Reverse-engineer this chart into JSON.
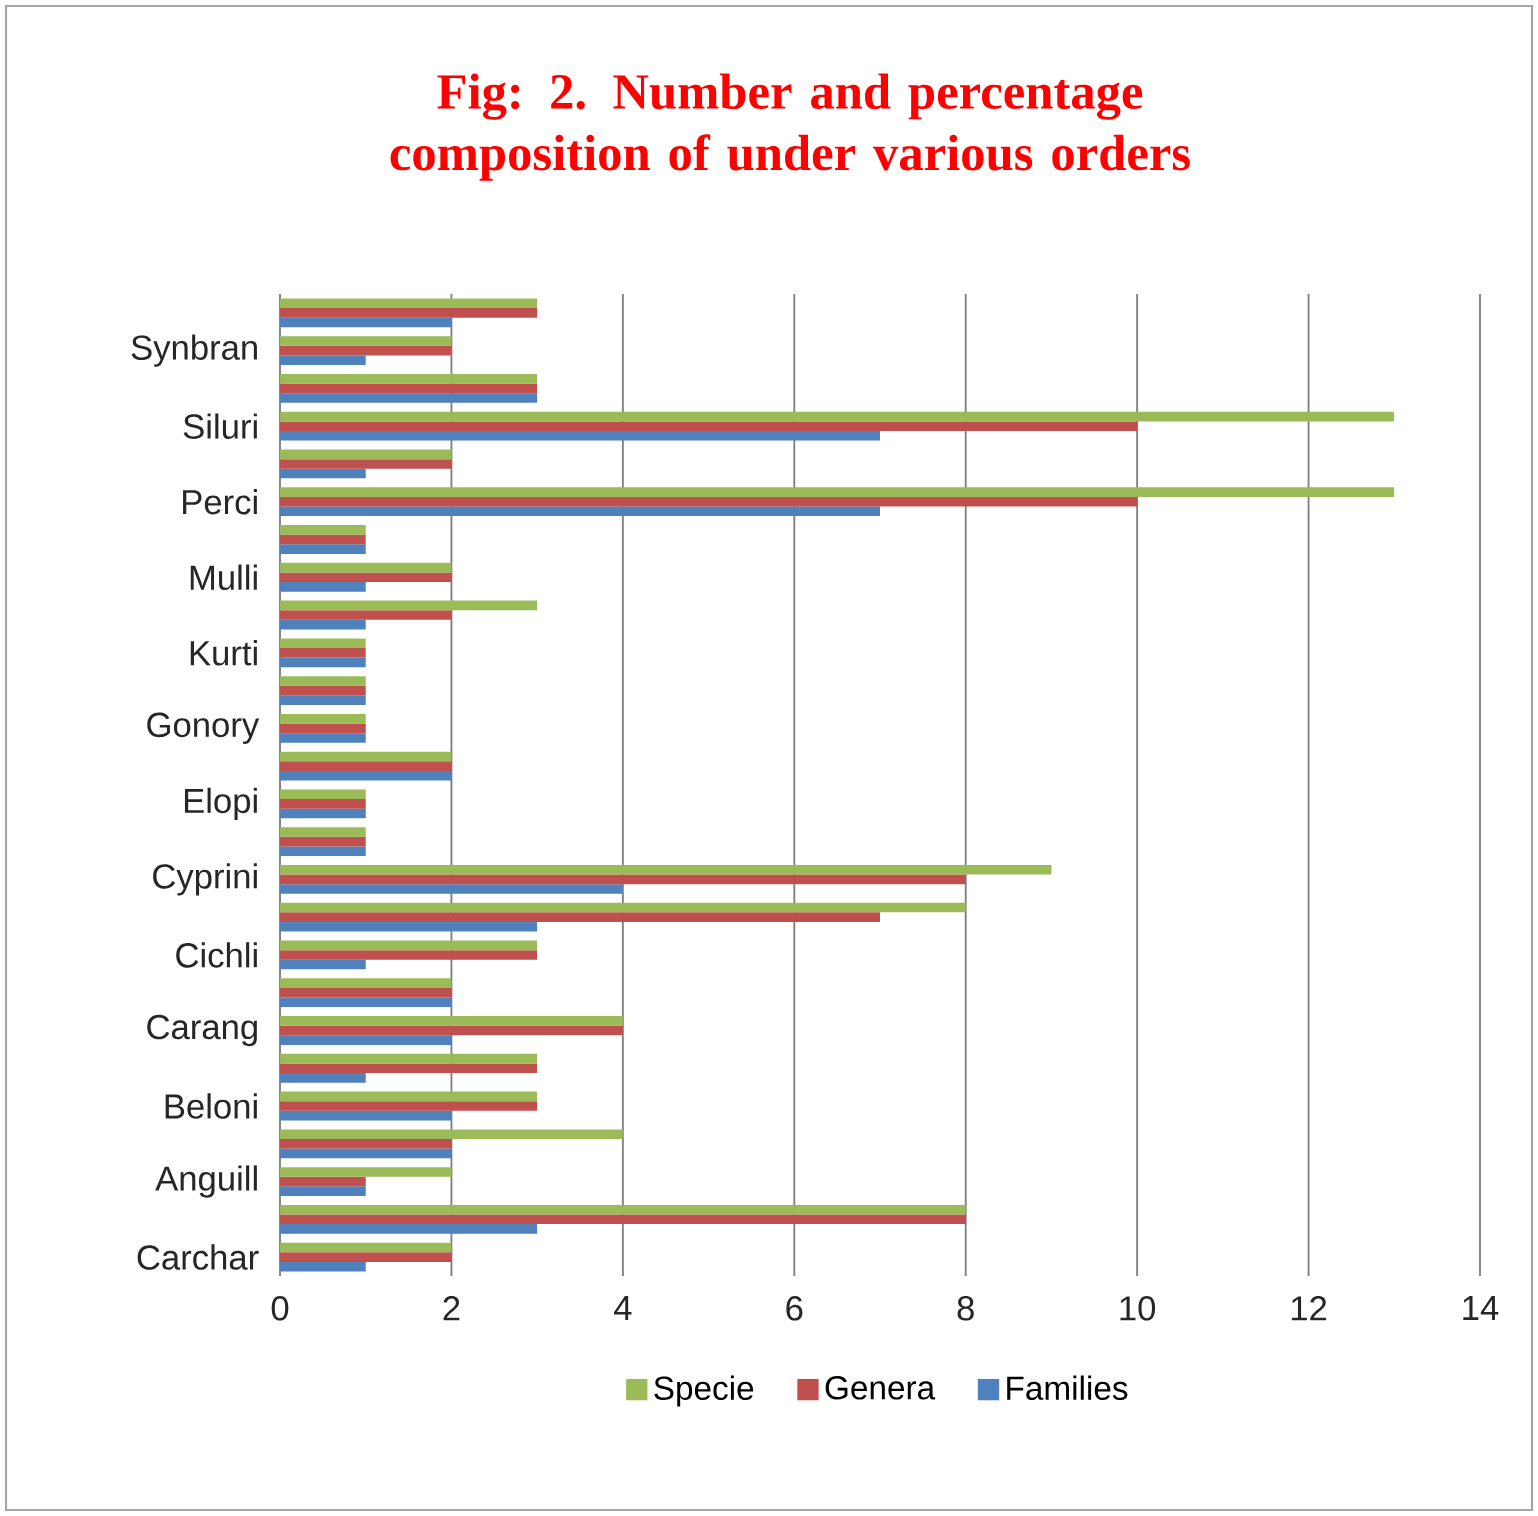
{
  "chart_data": {
    "type": "bar",
    "orientation": "horizontal",
    "title": "Fig: 2. Number and percentage composition of under various orders",
    "categories": [
      null,
      "Synbran",
      null,
      "Siluri",
      null,
      "Perci",
      null,
      "Mulli",
      null,
      "Kurti",
      null,
      "Gonory",
      null,
      "Elopi",
      null,
      "Cyprini",
      null,
      "Cichli",
      null,
      "Carang",
      null,
      "Beloni",
      null,
      "Anguill",
      null,
      "Carchar"
    ],
    "series": [
      {
        "name": "Families",
        "color": "#4f81bd",
        "values": [
          2,
          1,
          3,
          7,
          1,
          7,
          1,
          1,
          1,
          1,
          1,
          1,
          2,
          1,
          1,
          4,
          3,
          1,
          2,
          2,
          1,
          2,
          2,
          1,
          3,
          1
        ]
      },
      {
        "name": "Genera",
        "color": "#c0504d",
        "values": [
          3,
          2,
          3,
          10,
          2,
          10,
          1,
          2,
          2,
          1,
          1,
          1,
          2,
          1,
          1,
          8,
          7,
          3,
          2,
          4,
          3,
          3,
          2,
          1,
          8,
          2
        ]
      },
      {
        "name": "Specie",
        "color": "#9bbb59",
        "values": [
          3,
          2,
          3,
          13,
          2,
          13,
          1,
          2,
          3,
          1,
          1,
          1,
          2,
          1,
          1,
          9,
          8,
          3,
          2,
          4,
          3,
          3,
          4,
          2,
          8,
          2
        ]
      }
    ],
    "xlim": [
      0,
      14
    ],
    "xticks": [
      0,
      2,
      4,
      6,
      8,
      10,
      12,
      14
    ],
    "grid": "x",
    "legend": "bottom"
  }
}
